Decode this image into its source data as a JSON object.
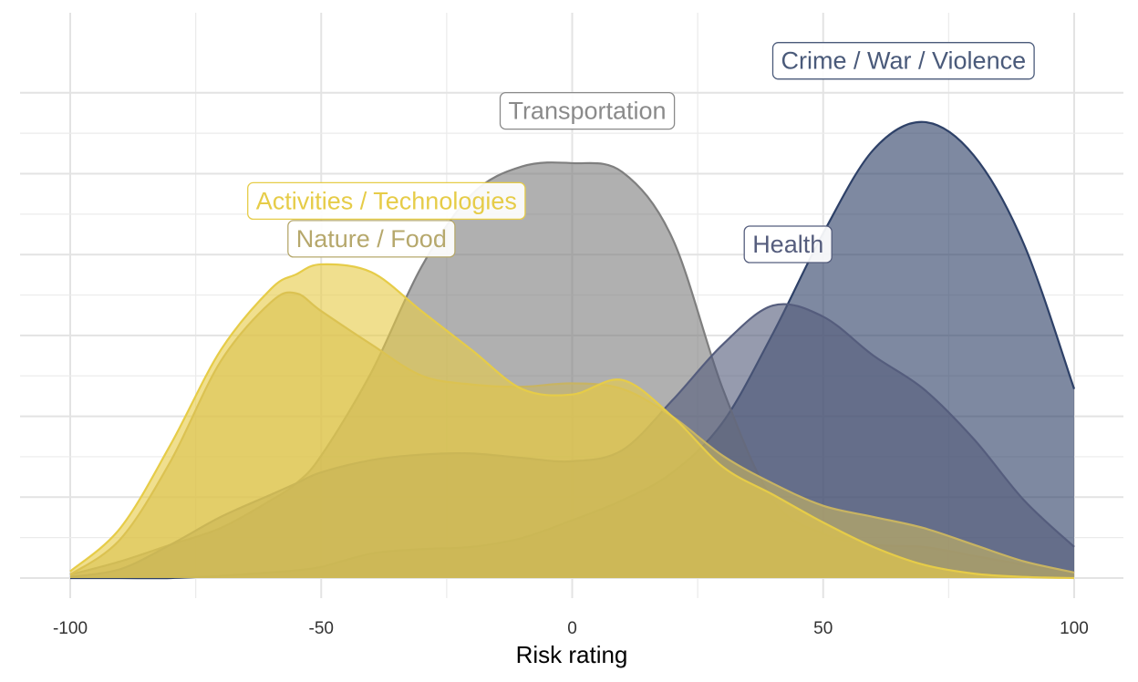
{
  "chart_data": {
    "type": "area",
    "xlabel": "Risk rating",
    "ylabel": "",
    "xlim": [
      -100,
      100
    ],
    "x_ticks": [
      -100,
      -50,
      0,
      50,
      100
    ],
    "x_tick_labels": [
      "-100",
      "-50",
      "0",
      "50",
      "100"
    ],
    "y_ticks_shown": false,
    "grid": true,
    "legend": "direct labels on curves",
    "x": [
      -100,
      -90,
      -80,
      -70,
      -60,
      -55,
      -50,
      -40,
      -30,
      -20,
      -10,
      0,
      10,
      20,
      30,
      40,
      50,
      60,
      70,
      80,
      90,
      100
    ],
    "series": [
      {
        "name": "Crime / War / Violence",
        "color": "#2e4168",
        "values": [
          0.0,
          0.0,
          0.0,
          0.2,
          0.5,
          0.7,
          1.0,
          2.2,
          2.6,
          2.8,
          3.6,
          5.2,
          7.0,
          9.5,
          14.0,
          22.0,
          31.0,
          38.5,
          41.0,
          38.0,
          30.0,
          17.0
        ]
      },
      {
        "name": "Transportation",
        "color": "#7f7f7f",
        "values": [
          0.3,
          1.5,
          3.0,
          4.5,
          7.0,
          8.5,
          11.0,
          18.5,
          28.0,
          34.5,
          37.0,
          37.3,
          36.5,
          30.5,
          17.0,
          7.0,
          4.0,
          3.0,
          2.8,
          2.0,
          1.2,
          0.5
        ]
      },
      {
        "name": "Health",
        "color": "#555d7d",
        "values": [
          0.1,
          0.8,
          3.0,
          5.5,
          7.5,
          8.5,
          9.5,
          10.6,
          11.1,
          11.2,
          10.8,
          10.5,
          11.5,
          16.0,
          21.0,
          24.5,
          23.5,
          20.0,
          17.0,
          12.5,
          7.0,
          2.8
        ]
      },
      {
        "name": "Nature / Food",
        "color": "#c8b462",
        "values": [
          0.3,
          3.5,
          10.5,
          19.5,
          24.8,
          25.6,
          24.0,
          21.0,
          18.2,
          17.4,
          17.2,
          17.5,
          17.0,
          14.5,
          11.0,
          8.5,
          6.5,
          5.5,
          4.5,
          3.0,
          1.5,
          0.5
        ]
      },
      {
        "name": "Activities / Technologies",
        "color": "#e6cc48",
        "values": [
          0.6,
          4.5,
          12.0,
          20.5,
          26.0,
          27.3,
          28.2,
          27.5,
          24.0,
          20.5,
          17.0,
          16.5,
          17.8,
          14.5,
          10.0,
          7.5,
          5.0,
          2.8,
          1.2,
          0.4,
          0.1,
          0.0
        ]
      }
    ],
    "annotations": [
      {
        "series": "Crime / War / Violence",
        "text": "Crime / War / Violence",
        "x": 66,
        "y": 46.5,
        "color": "#4a5a7a",
        "stroke": "#4a5a7a"
      },
      {
        "series": "Transportation",
        "text": "Transportation",
        "x": 3,
        "y": 42.0,
        "color": "#8a8a8a",
        "stroke": "#8a8a8a"
      },
      {
        "series": "Health",
        "text": "Health",
        "x": 43,
        "y": 30.0,
        "color": "#555d7d",
        "stroke": "#555d7d"
      },
      {
        "series": "Nature / Food",
        "text": "Nature / Food",
        "x": -40,
        "y": 30.5,
        "color": "#b6a86c",
        "stroke": "#b6a86c"
      },
      {
        "series": "Activities / Technologies",
        "text": "Activities / Technologies",
        "x": -37,
        "y": 33.9,
        "color": "#e6cc48",
        "stroke": "#e6cc48"
      }
    ]
  }
}
